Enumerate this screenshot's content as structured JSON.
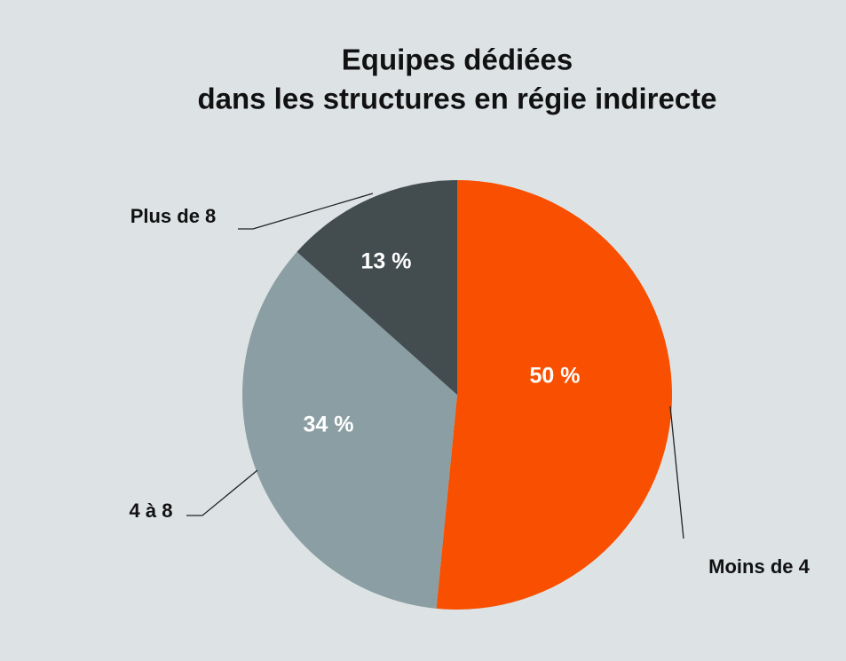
{
  "chart_data": {
    "type": "pie",
    "title": [
      "Equipes dédiées",
      "dans les structures en régie indirecte"
    ],
    "categories": [
      "Moins de 4",
      "4 à 8",
      "Plus de 8"
    ],
    "values": [
      50,
      34,
      13
    ],
    "value_labels": [
      "50 %",
      "34 %",
      "13 %"
    ],
    "colors": [
      "#f84f00",
      "#8a9ea3",
      "#434d50"
    ]
  }
}
